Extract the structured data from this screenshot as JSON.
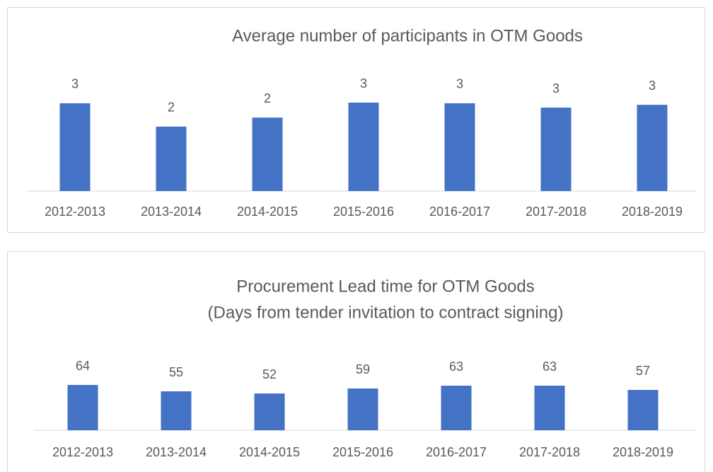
{
  "chart_data": [
    {
      "type": "bar",
      "title": "Average number of participants in OTM Goods",
      "categories": [
        "2012-2013",
        "2013-2014",
        "2014-2015",
        "2015-2016",
        "2016-2017",
        "2017-2018",
        "2018-2019"
      ],
      "values": [
        2.82,
        2.07,
        2.36,
        2.84,
        2.82,
        2.68,
        2.77
      ],
      "value_labels": [
        "3",
        "2",
        "2",
        "3",
        "3",
        "3",
        "3"
      ],
      "color": "#4472c4"
    },
    {
      "type": "bar",
      "title": "Procurement Lead time for OTM Goods",
      "subtitle": "(Days from tender invitation to contract signing)",
      "categories": [
        "2012-2013",
        "2013-2014",
        "2014-2015",
        "2015-2016",
        "2016-2017",
        "2017-2018",
        "2018-2019"
      ],
      "values": [
        64,
        55,
        52,
        59,
        63,
        63,
        57
      ],
      "color": "#4472c4"
    }
  ]
}
